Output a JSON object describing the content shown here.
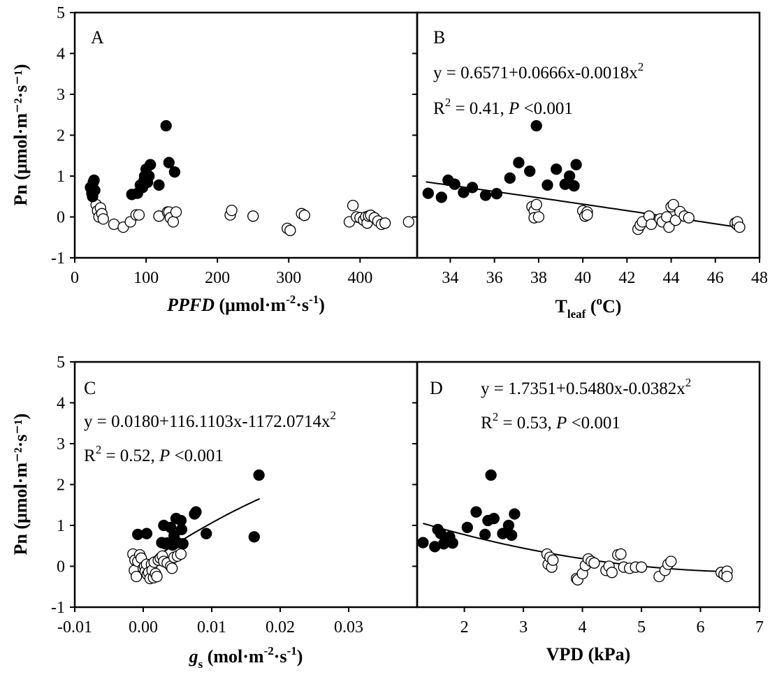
{
  "chart_data": [
    {
      "panel": "A",
      "type": "scatter",
      "title": "",
      "panel_label": "A",
      "xlabel": {
        "italic": "PPFD",
        "text": " (μmol·m",
        "sup1": "-2",
        "mid": "·s",
        "sup2": "-1",
        "close": ")"
      },
      "ylabel": "Pn (μmol·m⁻²·s⁻¹)",
      "xlim": [
        0,
        480
      ],
      "ylim": [
        -1,
        5
      ],
      "xticks": [
        0,
        100,
        200,
        300,
        400
      ],
      "xtick_labels": [
        "0",
        "100",
        "200",
        "300",
        "400"
      ],
      "yticks": [
        -1,
        0,
        1,
        2,
        3,
        4,
        5
      ],
      "ytick_labels": [
        "-1",
        "0",
        "1",
        "2",
        "3",
        "4",
        "5"
      ],
      "equation": null,
      "r2_text": null,
      "series": [
        {
          "name": "",
          "fill": "#000000",
          "x": [
            22,
            24,
            25,
            26,
            27,
            28,
            80,
            88,
            92,
            95,
            97,
            98,
            100,
            102,
            104,
            106,
            118,
            128,
            132,
            140
          ],
          "y": [
            0.72,
            0.58,
            0.5,
            0.85,
            0.9,
            0.65,
            0.55,
            0.58,
            0.78,
            0.72,
            0.88,
            1.0,
            1.17,
            0.85,
            1.0,
            1.28,
            0.78,
            2.23,
            1.33,
            1.1
          ]
        },
        {
          "name": "",
          "fill": "#ffffff",
          "x": [
            30,
            32,
            34,
            36,
            38,
            40,
            55,
            68,
            78,
            86,
            90,
            118,
            130,
            132,
            134,
            138,
            142,
            218,
            220,
            250,
            298,
            302,
            318,
            322,
            385,
            390,
            395,
            400,
            405,
            408,
            410,
            412,
            415,
            420,
            425,
            430,
            435,
            468
          ],
          "y": [
            0.3,
            0.15,
            0.0,
            0.22,
            0.08,
            -0.05,
            -0.18,
            -0.25,
            -0.12,
            0.05,
            0.05,
            0.02,
            0.12,
            0.12,
            -0.02,
            -0.12,
            0.12,
            0.05,
            0.16,
            0.02,
            -0.28,
            -0.33,
            0.08,
            0.04,
            -0.12,
            0.28,
            0.0,
            -0.02,
            -0.08,
            0.0,
            -0.15,
            0.02,
            0.04,
            -0.02,
            -0.1,
            -0.18,
            -0.15,
            -0.12
          ]
        }
      ]
    },
    {
      "panel": "B",
      "type": "scatter",
      "title": "",
      "panel_label": "B",
      "xlabel": {
        "text": "T",
        "sub": "leaf",
        "open": " (",
        "sup": "o",
        "close": "C)"
      },
      "ylabel": "",
      "xlim": [
        32.5,
        48
      ],
      "ylim": [
        -1,
        5
      ],
      "xticks": [
        34,
        36,
        38,
        40,
        42,
        44,
        46,
        48
      ],
      "xtick_labels": [
        "34",
        "36",
        "38",
        "40",
        "42",
        "44",
        "46",
        "48"
      ],
      "equation": {
        "lead": "y = 0.6571+0.0666x-0.0018x",
        "sup": "2"
      },
      "r2_text": {
        "lead": "R",
        "sup": "2",
        "mid": " = 0.41, ",
        "italic": "P",
        "tail": " <0.001"
      },
      "fit": {
        "type": "polynomial",
        "coef": [
          0.6571,
          0.0666,
          -0.0018
        ],
        "x0": 32.5,
        "range": [
          32.9,
          47.0
        ]
      },
      "series": [
        {
          "name": "",
          "fill": "#000000",
          "x": [
            33.0,
            33.6,
            33.9,
            34.2,
            34.6,
            35.0,
            35.6,
            36.1,
            36.7,
            37.1,
            37.6,
            37.9,
            38.4,
            38.8,
            39.2,
            39.4,
            39.6,
            39.7
          ],
          "y": [
            0.58,
            0.48,
            0.9,
            0.8,
            0.6,
            0.72,
            0.53,
            0.57,
            0.95,
            1.33,
            1.12,
            2.23,
            0.78,
            1.17,
            0.8,
            1.0,
            0.76,
            1.28
          ],
          "x_note": ""
        },
        {
          "name": "",
          "fill": "#ffffff",
          "x": [
            37.7,
            37.8,
            37.8,
            37.9,
            38.0,
            40.0,
            40.1,
            40.2,
            40.2,
            42.5,
            42.6,
            42.7,
            43.0,
            43.1,
            43.5,
            43.6,
            43.8,
            43.9,
            44.0,
            44.1,
            44.2,
            44.4,
            44.6,
            44.8,
            46.9,
            47.0,
            47.0,
            47.1
          ],
          "y": [
            0.25,
            0.15,
            -0.02,
            0.3,
            0.0,
            0.15,
            0.02,
            0.12,
            0.05,
            -0.3,
            -0.2,
            -0.12,
            0.02,
            -0.18,
            -0.05,
            -0.12,
            0.0,
            -0.25,
            0.25,
            0.3,
            -0.08,
            0.13,
            0.02,
            -0.02,
            -0.15,
            -0.2,
            -0.12,
            -0.25
          ]
        }
      ]
    },
    {
      "panel": "C",
      "type": "scatter",
      "title": "",
      "panel_label": "C",
      "xlabel": {
        "italic": "g",
        "sub": "s",
        "text": " (mol·m",
        "sup1": "-2",
        "mid": "·s",
        "sup2": "-1",
        "close": ")"
      },
      "ylabel": "Pn (μmol·m⁻²·s⁻¹)",
      "xlim": [
        -0.01,
        0.04
      ],
      "ylim": [
        -1,
        5
      ],
      "xticks": [
        -0.01,
        0.0,
        0.01,
        0.02,
        0.03
      ],
      "xtick_labels": [
        "-0.01",
        "0.00",
        "0.01",
        "0.02",
        "0.03"
      ],
      "yticks": [
        -1,
        0,
        1,
        2,
        3,
        4,
        5
      ],
      "ytick_labels": [
        "-1",
        "0",
        "1",
        "2",
        "3",
        "4",
        "5"
      ],
      "equation": {
        "lead": "y = 0.0180+116.1103x-1172.0714x",
        "sup": "2"
      },
      "r2_text": {
        "lead": "R",
        "sup": "2",
        "mid": " = 0.52, ",
        "italic": "P",
        "tail": " <0.001"
      },
      "fit": {
        "type": "polynomial",
        "coef": [
          0.018,
          116.1103,
          -1172.0714
        ],
        "x0": 0,
        "range": [
          -0.0005,
          0.017
        ]
      },
      "series": [
        {
          "name": "",
          "fill": "#000000",
          "x": [
            -0.0008,
            0.0005,
            0.0027,
            0.003,
            0.0032,
            0.0035,
            0.004,
            0.0043,
            0.0045,
            0.0048,
            0.005,
            0.0055,
            0.0056,
            0.0058,
            0.0075,
            0.0077,
            0.0092,
            0.0162,
            0.0169
          ],
          "y": [
            0.78,
            0.8,
            0.58,
            1.0,
            0.55,
            0.57,
            0.95,
            0.52,
            0.75,
            1.17,
            0.58,
            1.12,
            0.9,
            0.55,
            1.28,
            1.33,
            0.8,
            0.72,
            2.23
          ]
        },
        {
          "name": "",
          "fill": "#ffffff",
          "x": [
            -0.0015,
            -0.0013,
            -0.0012,
            -0.001,
            -0.0008,
            -0.0005,
            -0.0003,
            0.0,
            0.0002,
            0.0003,
            0.0005,
            0.0006,
            0.0008,
            0.001,
            0.0012,
            0.0013,
            0.0015,
            0.0016,
            0.0018,
            0.002,
            0.0022,
            0.0025,
            0.0028,
            0.003,
            0.0035,
            0.004,
            0.0042,
            0.0045,
            0.005,
            0.0055
          ],
          "y": [
            0.3,
            -0.1,
            0.15,
            -0.25,
            0.12,
            0.28,
            0.2,
            -0.05,
            0.0,
            -0.12,
            0.05,
            -0.2,
            -0.15,
            -0.3,
            0.05,
            -0.1,
            -0.28,
            0.1,
            -0.18,
            -0.25,
            0.15,
            0.2,
            0.25,
            0.12,
            0.08,
            0.0,
            -0.05,
            0.22,
            0.25,
            0.3
          ]
        }
      ]
    },
    {
      "panel": "D",
      "type": "scatter",
      "title": "",
      "panel_label": "D",
      "xlabel": {
        "text": "VPD (kPa)"
      },
      "ylabel": "",
      "xlim": [
        1.2,
        7
      ],
      "ylim": [
        -1,
        5
      ],
      "xticks": [
        2,
        3,
        4,
        5,
        6,
        7
      ],
      "xtick_labels": [
        "2",
        "3",
        "4",
        "5",
        "6",
        "7"
      ],
      "equation": {
        "lead": "y = 1.7351+0.5480x-0.0382x",
        "sup": "2"
      },
      "r2_text": {
        "lead": "R",
        "sup": "2",
        "mid": " = 0.53, ",
        "italic": "P",
        "tail": " <0.001"
      },
      "fit": {
        "type": "polynomial",
        "coef": [
          1.7351,
          0.548,
          -0.0382
        ],
        "x0": 1.2,
        "range": [
          1.3,
          6.4
        ]
      },
      "series": [
        {
          "name": "",
          "fill": "#000000",
          "x": [
            1.3,
            1.5,
            1.55,
            1.6,
            1.65,
            1.7,
            1.75,
            1.8,
            2.05,
            2.2,
            2.35,
            2.4,
            2.45,
            2.5,
            2.65,
            2.75,
            2.8,
            2.85
          ],
          "y": [
            0.58,
            0.48,
            0.9,
            0.8,
            0.55,
            0.6,
            0.72,
            0.57,
            0.95,
            1.33,
            0.78,
            1.12,
            2.23,
            1.17,
            0.8,
            1.0,
            0.76,
            1.28
          ]
        },
        {
          "name": "",
          "fill": "#ffffff",
          "x": [
            3.4,
            3.42,
            3.45,
            3.48,
            3.5,
            3.9,
            3.92,
            4.0,
            4.05,
            4.1,
            4.15,
            4.2,
            4.4,
            4.45,
            4.5,
            4.6,
            4.65,
            4.7,
            4.8,
            4.9,
            5.0,
            5.3,
            5.4,
            5.45,
            5.5,
            6.35,
            6.4,
            6.45,
            6.45
          ],
          "y": [
            0.3,
            0.05,
            0.22,
            -0.02,
            0.15,
            -0.3,
            -0.33,
            -0.18,
            0.02,
            0.18,
            0.12,
            0.08,
            -0.1,
            0.0,
            -0.15,
            0.28,
            0.3,
            -0.02,
            -0.05,
            -0.02,
            -0.02,
            -0.25,
            -0.1,
            0.05,
            0.12,
            -0.15,
            -0.2,
            -0.12,
            -0.25
          ]
        }
      ]
    }
  ]
}
